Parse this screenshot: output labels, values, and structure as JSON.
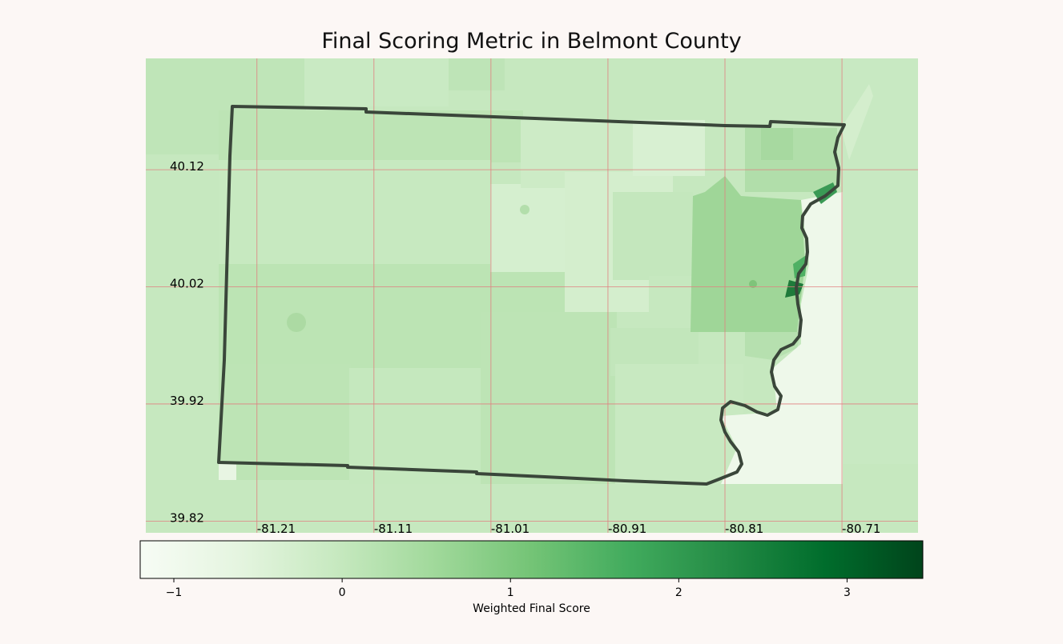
{
  "title": "Final Scoring Metric in Belmont County",
  "colorbar": {
    "label": "Weighted Final Score",
    "min": -1.2,
    "max": 3.45,
    "ticks": [
      {
        "value": -1,
        "label": "−1"
      },
      {
        "value": 0,
        "label": "0"
      },
      {
        "value": 1,
        "label": "1"
      },
      {
        "value": 2,
        "label": "2"
      },
      {
        "value": 3,
        "label": "3"
      }
    ],
    "colors": [
      "#f7fcf5",
      "#e5f5e0",
      "#c7e9c0",
      "#a1d99b",
      "#74c476",
      "#41ab5d",
      "#238b45",
      "#006d2c",
      "#00441b"
    ]
  },
  "map": {
    "extent": {
      "lon": [
        -81.305,
        -80.645
      ],
      "lat": [
        39.81,
        40.215
      ]
    },
    "latitudes": [
      {
        "value": 40.12,
        "label": "40.12"
      },
      {
        "value": 40.02,
        "label": "40.02"
      },
      {
        "value": 39.92,
        "label": "39.92"
      },
      {
        "value": 39.82,
        "label": "39.82"
      }
    ],
    "longitudes": [
      {
        "value": -81.21,
        "label": "-81.21"
      },
      {
        "value": -81.11,
        "label": "-81.11"
      },
      {
        "value": -81.01,
        "label": "-81.01"
      },
      {
        "value": -80.91,
        "label": "-80.91"
      },
      {
        "value": -80.81,
        "label": "-80.81"
      },
      {
        "value": -80.71,
        "label": "-80.71"
      }
    ],
    "grid_color": "#e08080",
    "boundary_color": "#3a463a"
  }
}
